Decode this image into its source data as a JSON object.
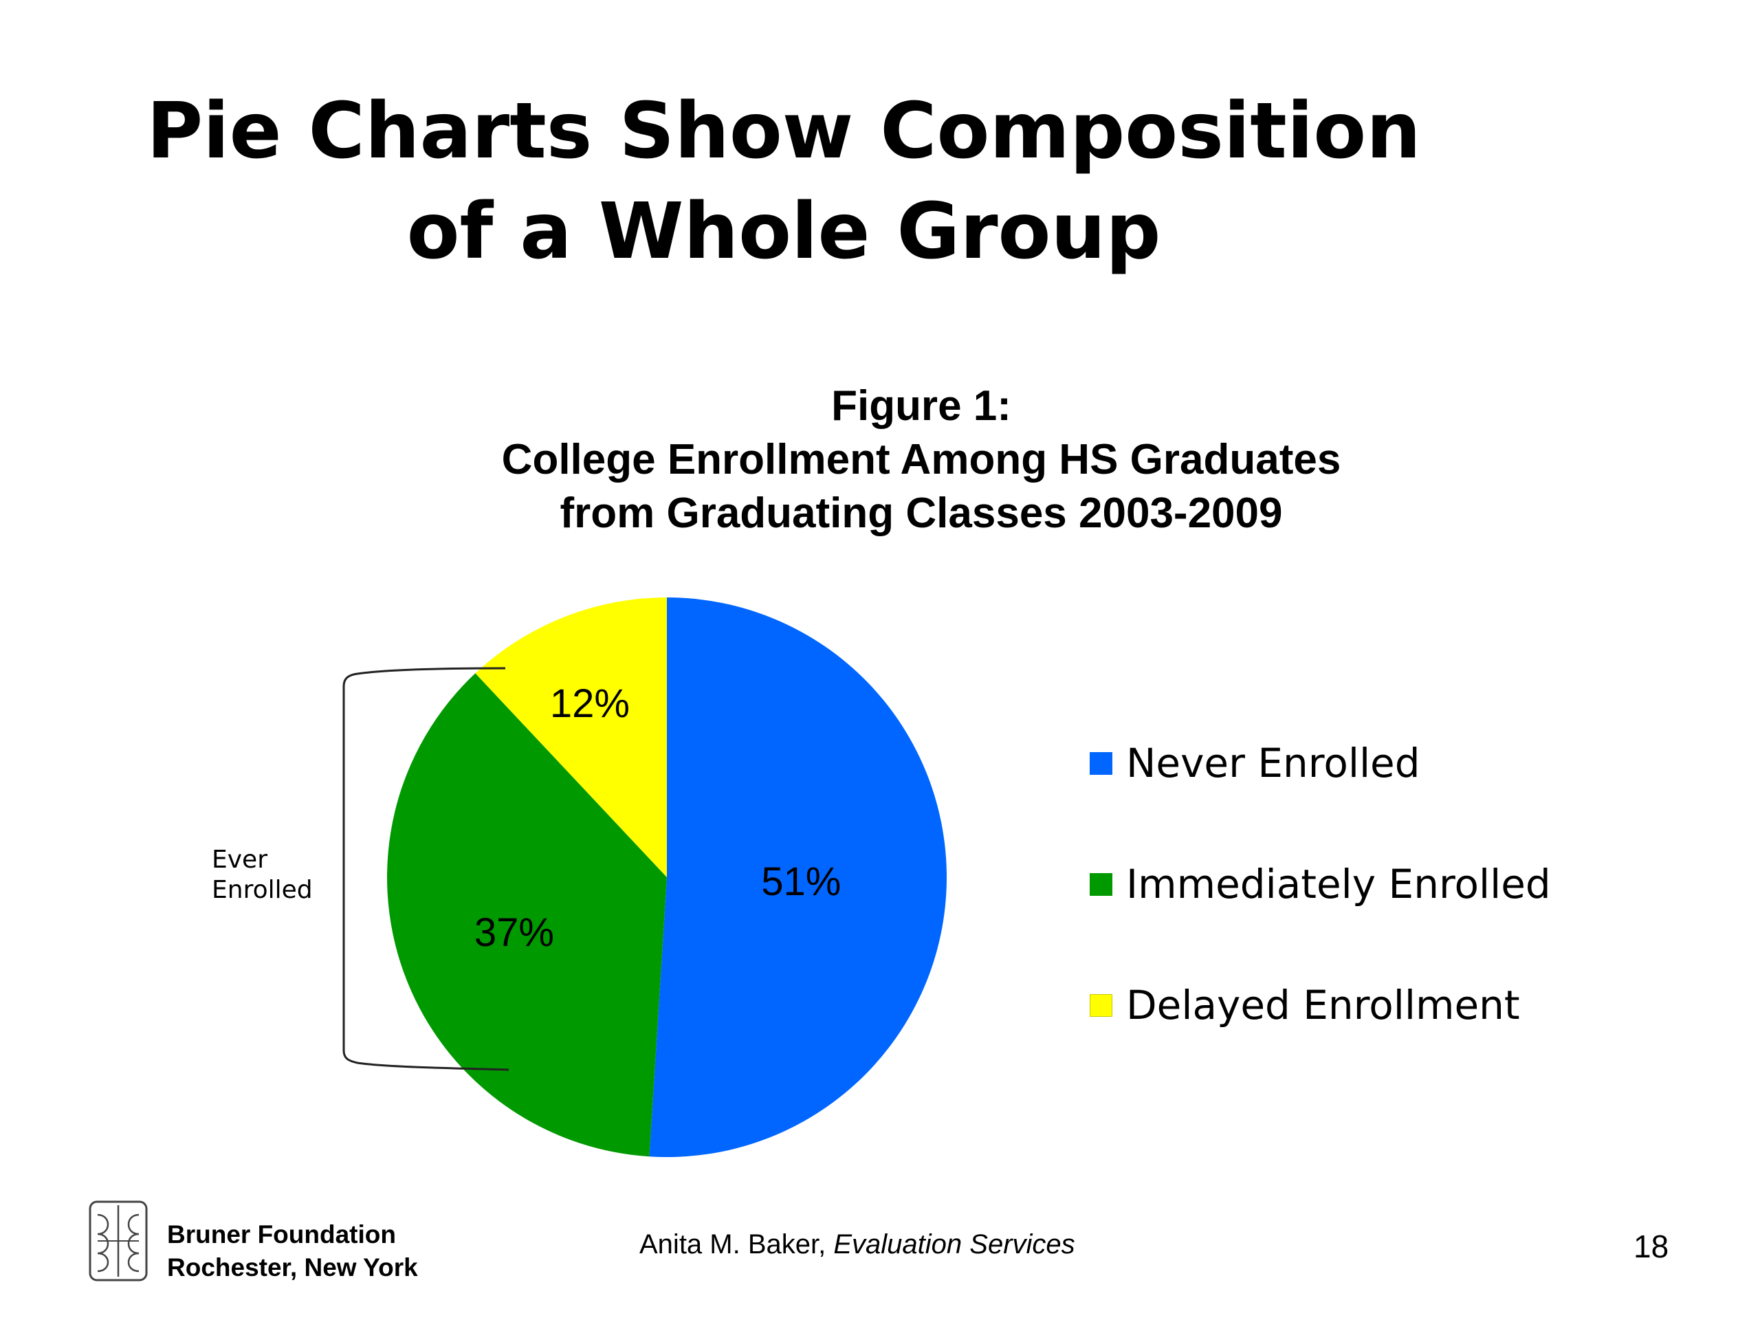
{
  "slide": {
    "title_line1": "Pie Charts Show Composition",
    "title_line2": "of a Whole Group"
  },
  "chart_data": {
    "type": "pie",
    "title_line1": "Figure 1:",
    "title_line2": "College Enrollment Among HS Graduates",
    "title_line3": "from Graduating Classes 2003-2009",
    "categories": [
      "Never Enrolled",
      "Immediately Enrolled",
      "Delayed Enrollment"
    ],
    "values": [
      51,
      37,
      12
    ],
    "labels": [
      "51%",
      "37%",
      "12%"
    ],
    "colors": [
      "#0066FF",
      "#009900",
      "#FFFF00"
    ],
    "legend_position": "right",
    "annotation": {
      "line1": "Ever",
      "line2": "Enrolled"
    }
  },
  "footer": {
    "logo_icon": "bruner-foundation-logo-icon",
    "org_line1": "Bruner Foundation",
    "org_line2": "Rochester, New York",
    "author": "Anita M. Baker,",
    "author_org": "Evaluation Services",
    "page_number": "18"
  }
}
